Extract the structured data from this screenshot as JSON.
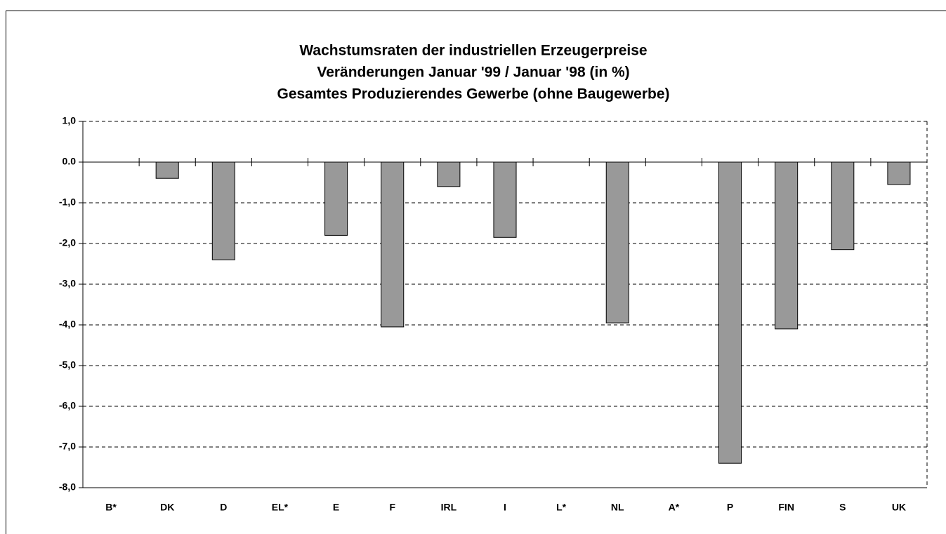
{
  "chart_data": {
    "type": "bar",
    "title": [
      "Wachstumsraten der industriellen Erzeugerpreise",
      "Veränderungen Januar '99 / Januar '98 (in %)",
      "Gesamtes Produzierendes Gewerbe (ohne Baugewerbe)"
    ],
    "categories": [
      "B*",
      "DK",
      "D",
      "EL*",
      "E",
      "F",
      "IRL",
      "I",
      "L*",
      "NL",
      "A*",
      "P",
      "FIN",
      "S",
      "UK"
    ],
    "values": [
      null,
      -0.4,
      -2.4,
      null,
      -1.8,
      -4.05,
      -0.6,
      -1.85,
      null,
      -3.95,
      null,
      -7.4,
      -4.1,
      -2.15,
      -0.55
    ],
    "color": "#999999",
    "ylim": [
      -8,
      1
    ],
    "yticks": [
      {
        "value": 1,
        "label": "1,0"
      },
      {
        "value": 0,
        "label": "0.0"
      },
      {
        "value": -1,
        "label": "-1,0"
      },
      {
        "value": -2,
        "label": "-2,0"
      },
      {
        "value": -3,
        "label": "-3,0"
      },
      {
        "value": -4,
        "label": "-4,0"
      },
      {
        "value": -5,
        "label": "-5,0"
      },
      {
        "value": -6,
        "label": "-6,0"
      },
      {
        "value": -7,
        "label": "-7,0"
      },
      {
        "value": -8,
        "label": "-8,0"
      }
    ],
    "grid": true
  }
}
